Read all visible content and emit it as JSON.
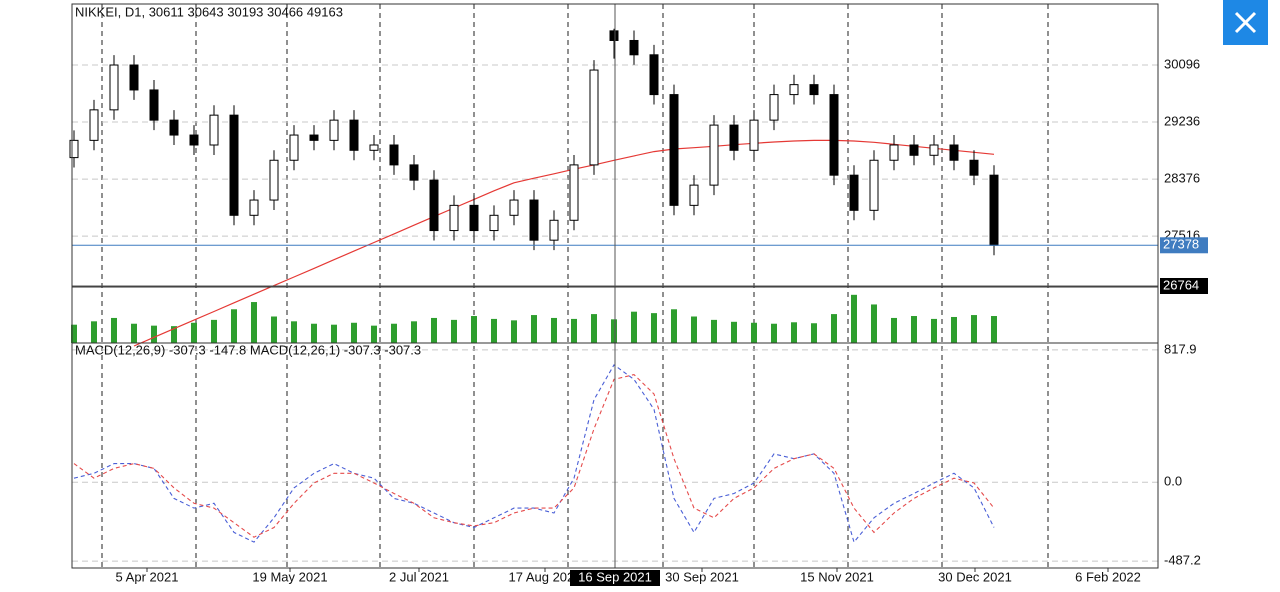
{
  "chart_data": [
    {
      "type": "candlestick",
      "title": "NIKKEI, D1, 30611 30643 30193 30466 49163",
      "open": [
        28700,
        28960,
        29420,
        30096,
        29720,
        29265,
        29040,
        28890,
        29340,
        27830,
        28060,
        28660,
        29040,
        28960,
        29265,
        28810,
        28890,
        28590,
        28360,
        27600,
        27980,
        27600,
        27830,
        28060,
        27455,
        27755,
        28590,
        30611,
        30466,
        30250,
        29650,
        27980,
        28285,
        29190,
        28810,
        29265,
        29650,
        29800,
        29650,
        28435,
        27905,
        28660,
        28890,
        28735,
        28890,
        28660,
        28435
      ],
      "high": [
        29110,
        29570,
        30246,
        30246,
        29870,
        29415,
        29190,
        29490,
        29490,
        28210,
        28810,
        29190,
        29190,
        29415,
        29415,
        29040,
        29040,
        28740,
        28510,
        28130,
        28130,
        27980,
        28210,
        28210,
        27905,
        28740,
        30170,
        30643,
        30616,
        30400,
        29800,
        28435,
        29340,
        29340,
        29415,
        29800,
        29950,
        29950,
        29800,
        28585,
        28810,
        29040,
        29040,
        29040,
        29040,
        28810,
        28585
      ],
      "low": [
        28550,
        28810,
        29270,
        29570,
        29115,
        28890,
        28740,
        28740,
        27680,
        27680,
        27910,
        28510,
        28810,
        28810,
        28660,
        28660,
        28440,
        28210,
        27450,
        27450,
        27450,
        27450,
        27680,
        27305,
        27305,
        27605,
        28440,
        30193,
        30100,
        29500,
        27830,
        27830,
        28135,
        28660,
        28660,
        29115,
        29500,
        29500,
        28285,
        27755,
        27755,
        28510,
        28585,
        28585,
        28510,
        28285,
        27228
      ],
      "close": [
        28960,
        29420,
        30096,
        29720,
        29265,
        29040,
        28890,
        29340,
        27830,
        28060,
        28660,
        29040,
        28960,
        29265,
        28810,
        28890,
        28590,
        28360,
        27600,
        27980,
        27600,
        27830,
        28060,
        27455,
        27755,
        28590,
        30020,
        30466,
        30250,
        29650,
        27980,
        28285,
        29190,
        28810,
        29265,
        29650,
        29800,
        29650,
        28435,
        27905,
        28660,
        28890,
        28735,
        28890,
        28660,
        28435,
        27378
      ],
      "moving_average": {
        "color": "#e53935",
        "values": [
          null,
          null,
          null,
          25860,
          25990,
          26120,
          26250,
          26380,
          26510,
          26640,
          26770,
          26900,
          27030,
          27160,
          27290,
          27420,
          27550,
          27680,
          27810,
          27940,
          28070,
          28200,
          28320,
          28390,
          28455,
          28525,
          28590,
          28660,
          28725,
          28790,
          28830,
          28850,
          28870,
          28895,
          28915,
          28935,
          28950,
          28960,
          28960,
          28950,
          28930,
          28900,
          28870,
          28840,
          28810,
          28780,
          28750
        ]
      },
      "ylim": [
        26764,
        31016
      ],
      "yticks": [
        27516,
        28376,
        29236,
        30096
      ],
      "grid": true,
      "current_price": 27378,
      "current_color": "#3f7cc0",
      "xlim": [
        -0.1,
        54.2
      ],
      "xticks": [
        {
          "value": 3.65,
          "label": "5 Apr 2021"
        },
        {
          "value": 10.8,
          "label": "19 May 2021"
        },
        {
          "value": 17.25,
          "label": "2 Jul 2021"
        },
        {
          "value": 23.55,
          "label": "17 Aug 2021"
        },
        {
          "value": 31.4,
          "label": "30 Sep 2021"
        },
        {
          "value": 38.15,
          "label": "15 Nov 2021"
        },
        {
          "value": 45.05,
          "label": "30 Dec 2021"
        },
        {
          "value": 51.7,
          "label": "6 Feb 2022"
        }
      ],
      "crosshair": {
        "x": 27.05,
        "x_label": "16 Sep 2021",
        "y": 26764
      }
    },
    {
      "type": "bar",
      "color": "#2e9e2e",
      "ylim": [
        0,
        110000
      ],
      "values": [
        38000,
        45000,
        52000,
        40000,
        36000,
        35000,
        42000,
        48000,
        70000,
        85000,
        55000,
        45000,
        40000,
        38000,
        42000,
        36000,
        40000,
        45000,
        52000,
        48000,
        56000,
        50000,
        47000,
        58000,
        52000,
        50000,
        60000,
        49163,
        65000,
        62000,
        70000,
        55000,
        48000,
        44000,
        42000,
        40000,
        43000,
        41000,
        60000,
        100000,
        80000,
        52000,
        56000,
        50000,
        54000,
        58000,
        56000
      ]
    },
    {
      "type": "line",
      "title": "MACD(12,26,9) -307.3 -147.8 MACD(12,26,1) -307.3 -307.3",
      "ylim": [
        -530,
        860
      ],
      "yticks": [
        817.9,
        {
          "value": 0,
          "label": "0.0"
        },
        -487.2
      ],
      "series": [
        {
          "color": "#4a5fd6",
          "values": [
            25,
            55,
            115,
            115,
            85,
            -100,
            -160,
            -130,
            -310,
            -370,
            -220,
            -35,
            55,
            115,
            55,
            25,
            -100,
            -130,
            -190,
            -250,
            -280,
            -220,
            -160,
            -160,
            -190,
            25,
            510,
            725,
            635,
            450,
            -100,
            -310,
            -100,
            -70,
            -5,
            175,
            145,
            175,
            55,
            -370,
            -220,
            -130,
            -70,
            -5,
            55,
            -35,
            -280
          ]
        },
        {
          "color": "#e54b4b",
          "values": [
            115,
            25,
            85,
            115,
            85,
            -35,
            -130,
            -160,
            -250,
            -340,
            -280,
            -130,
            -5,
            55,
            55,
            -5,
            -70,
            -130,
            -220,
            -250,
            -270,
            -250,
            -190,
            -160,
            -160,
            -35,
            330,
            635,
            665,
            545,
            145,
            -160,
            -220,
            -100,
            -35,
            85,
            145,
            175,
            85,
            -160,
            -310,
            -190,
            -100,
            -35,
            25,
            -5,
            -160
          ]
        }
      ]
    }
  ]
}
